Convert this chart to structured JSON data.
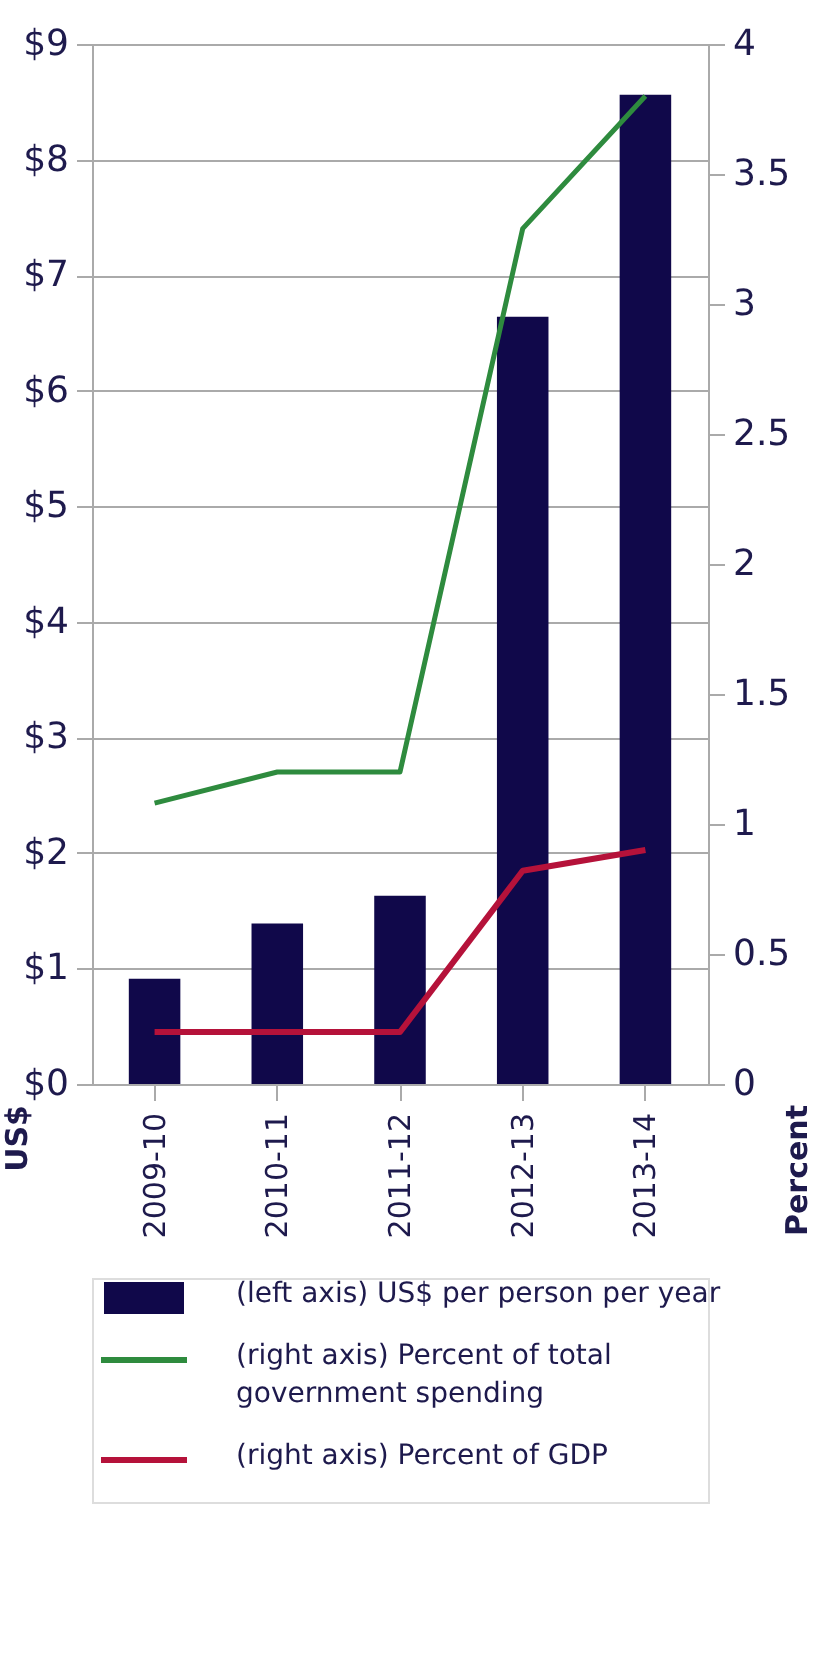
{
  "chart_data": {
    "type": "bar",
    "categories": [
      "2009-10",
      "2010-11",
      "2011-12",
      "2012-13",
      "2013-14"
    ],
    "series": [
      {
        "name": "(left axis) US$ per person per year",
        "color": "#10084a",
        "values": [
          0.91,
          1.39,
          1.63,
          6.64,
          8.56
        ]
      },
      {
        "name": "(right axis) Percent of total government spending",
        "type": "line",
        "axis": "y2",
        "color": "#2e8b3e",
        "values": [
          1.08,
          1.2,
          1.2,
          3.29,
          3.8
        ]
      },
      {
        "name": "(right axis) Percent of GDP",
        "type": "line",
        "axis": "y2",
        "color": "#b5123a",
        "values": [
          0.2,
          0.2,
          0.2,
          0.82,
          0.9
        ]
      }
    ],
    "ylabel": "US$",
    "y2label": "Percent",
    "ylim": [
      0,
      9
    ],
    "yticks": [
      {
        "value": 0,
        "label": "$0"
      },
      {
        "value": 1,
        "label": "$1"
      },
      {
        "value": 2,
        "label": "$2"
      },
      {
        "value": 3,
        "label": "$3"
      },
      {
        "value": 4,
        "label": "$4"
      },
      {
        "value": 5,
        "label": "$5"
      },
      {
        "value": 6,
        "label": "$6"
      },
      {
        "value": 7,
        "label": "$7"
      },
      {
        "value": 8,
        "label": "$8"
      },
      {
        "value": 9,
        "label": "$9"
      }
    ],
    "y2lim": [
      0,
      4
    ],
    "y2ticks": [
      0,
      0.5,
      1,
      1.5,
      2,
      2.5,
      3,
      3.5,
      4
    ],
    "grid": "y",
    "legend": "bottom",
    "marker": "none",
    "line_style": "solid"
  }
}
